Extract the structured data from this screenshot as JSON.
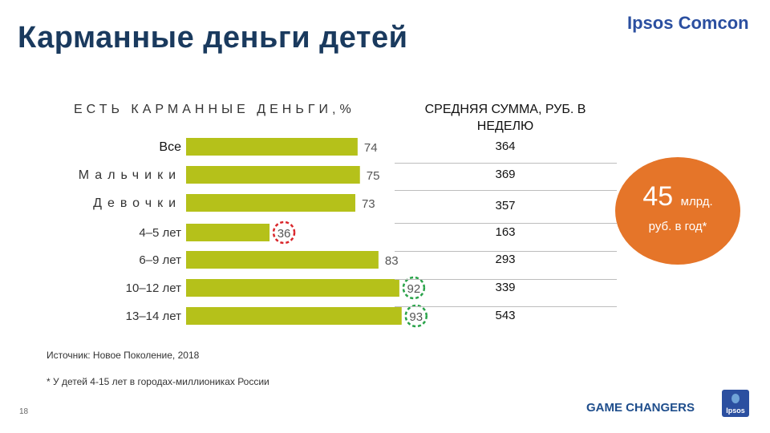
{
  "title": "Карманные деньги детей",
  "brand": "Ipsos Comcon",
  "left_header": "ЕСТЬ КАРМАННЫЕ ДЕНЬГИ,%",
  "right_header": "СРЕДНЯЯ СУММА, РУБ. В НЕДЕЛЮ",
  "chart_data": {
    "type": "bar",
    "orientation": "horizontal",
    "categories": [
      "Все",
      "Мальчики",
      "Девочки",
      "4–5 лет",
      "6–9 лет",
      "10–12 лет",
      "13–14 лет"
    ],
    "values": [
      74,
      75,
      73,
      36,
      83,
      92,
      93
    ],
    "weekly_sum_rub": [
      364,
      369,
      357,
      163,
      293,
      339,
      543
    ],
    "highlighted": {
      "36": "red",
      "92": "green",
      "93": "green"
    },
    "bar_color": "#b5c11a",
    "xlim": [
      0,
      100
    ]
  },
  "badge": {
    "value": "45",
    "unit": "млрд.",
    "sub": "руб. в год*",
    "color": "#e57529"
  },
  "source": "Источник: Новое Поколение, 2018",
  "footnote": "* У детей 4-15 лет в городах-миллиониках России",
  "page_number": "18",
  "footer_tagline": "GAME CHANGERS",
  "footer_logo": "Ipsos"
}
